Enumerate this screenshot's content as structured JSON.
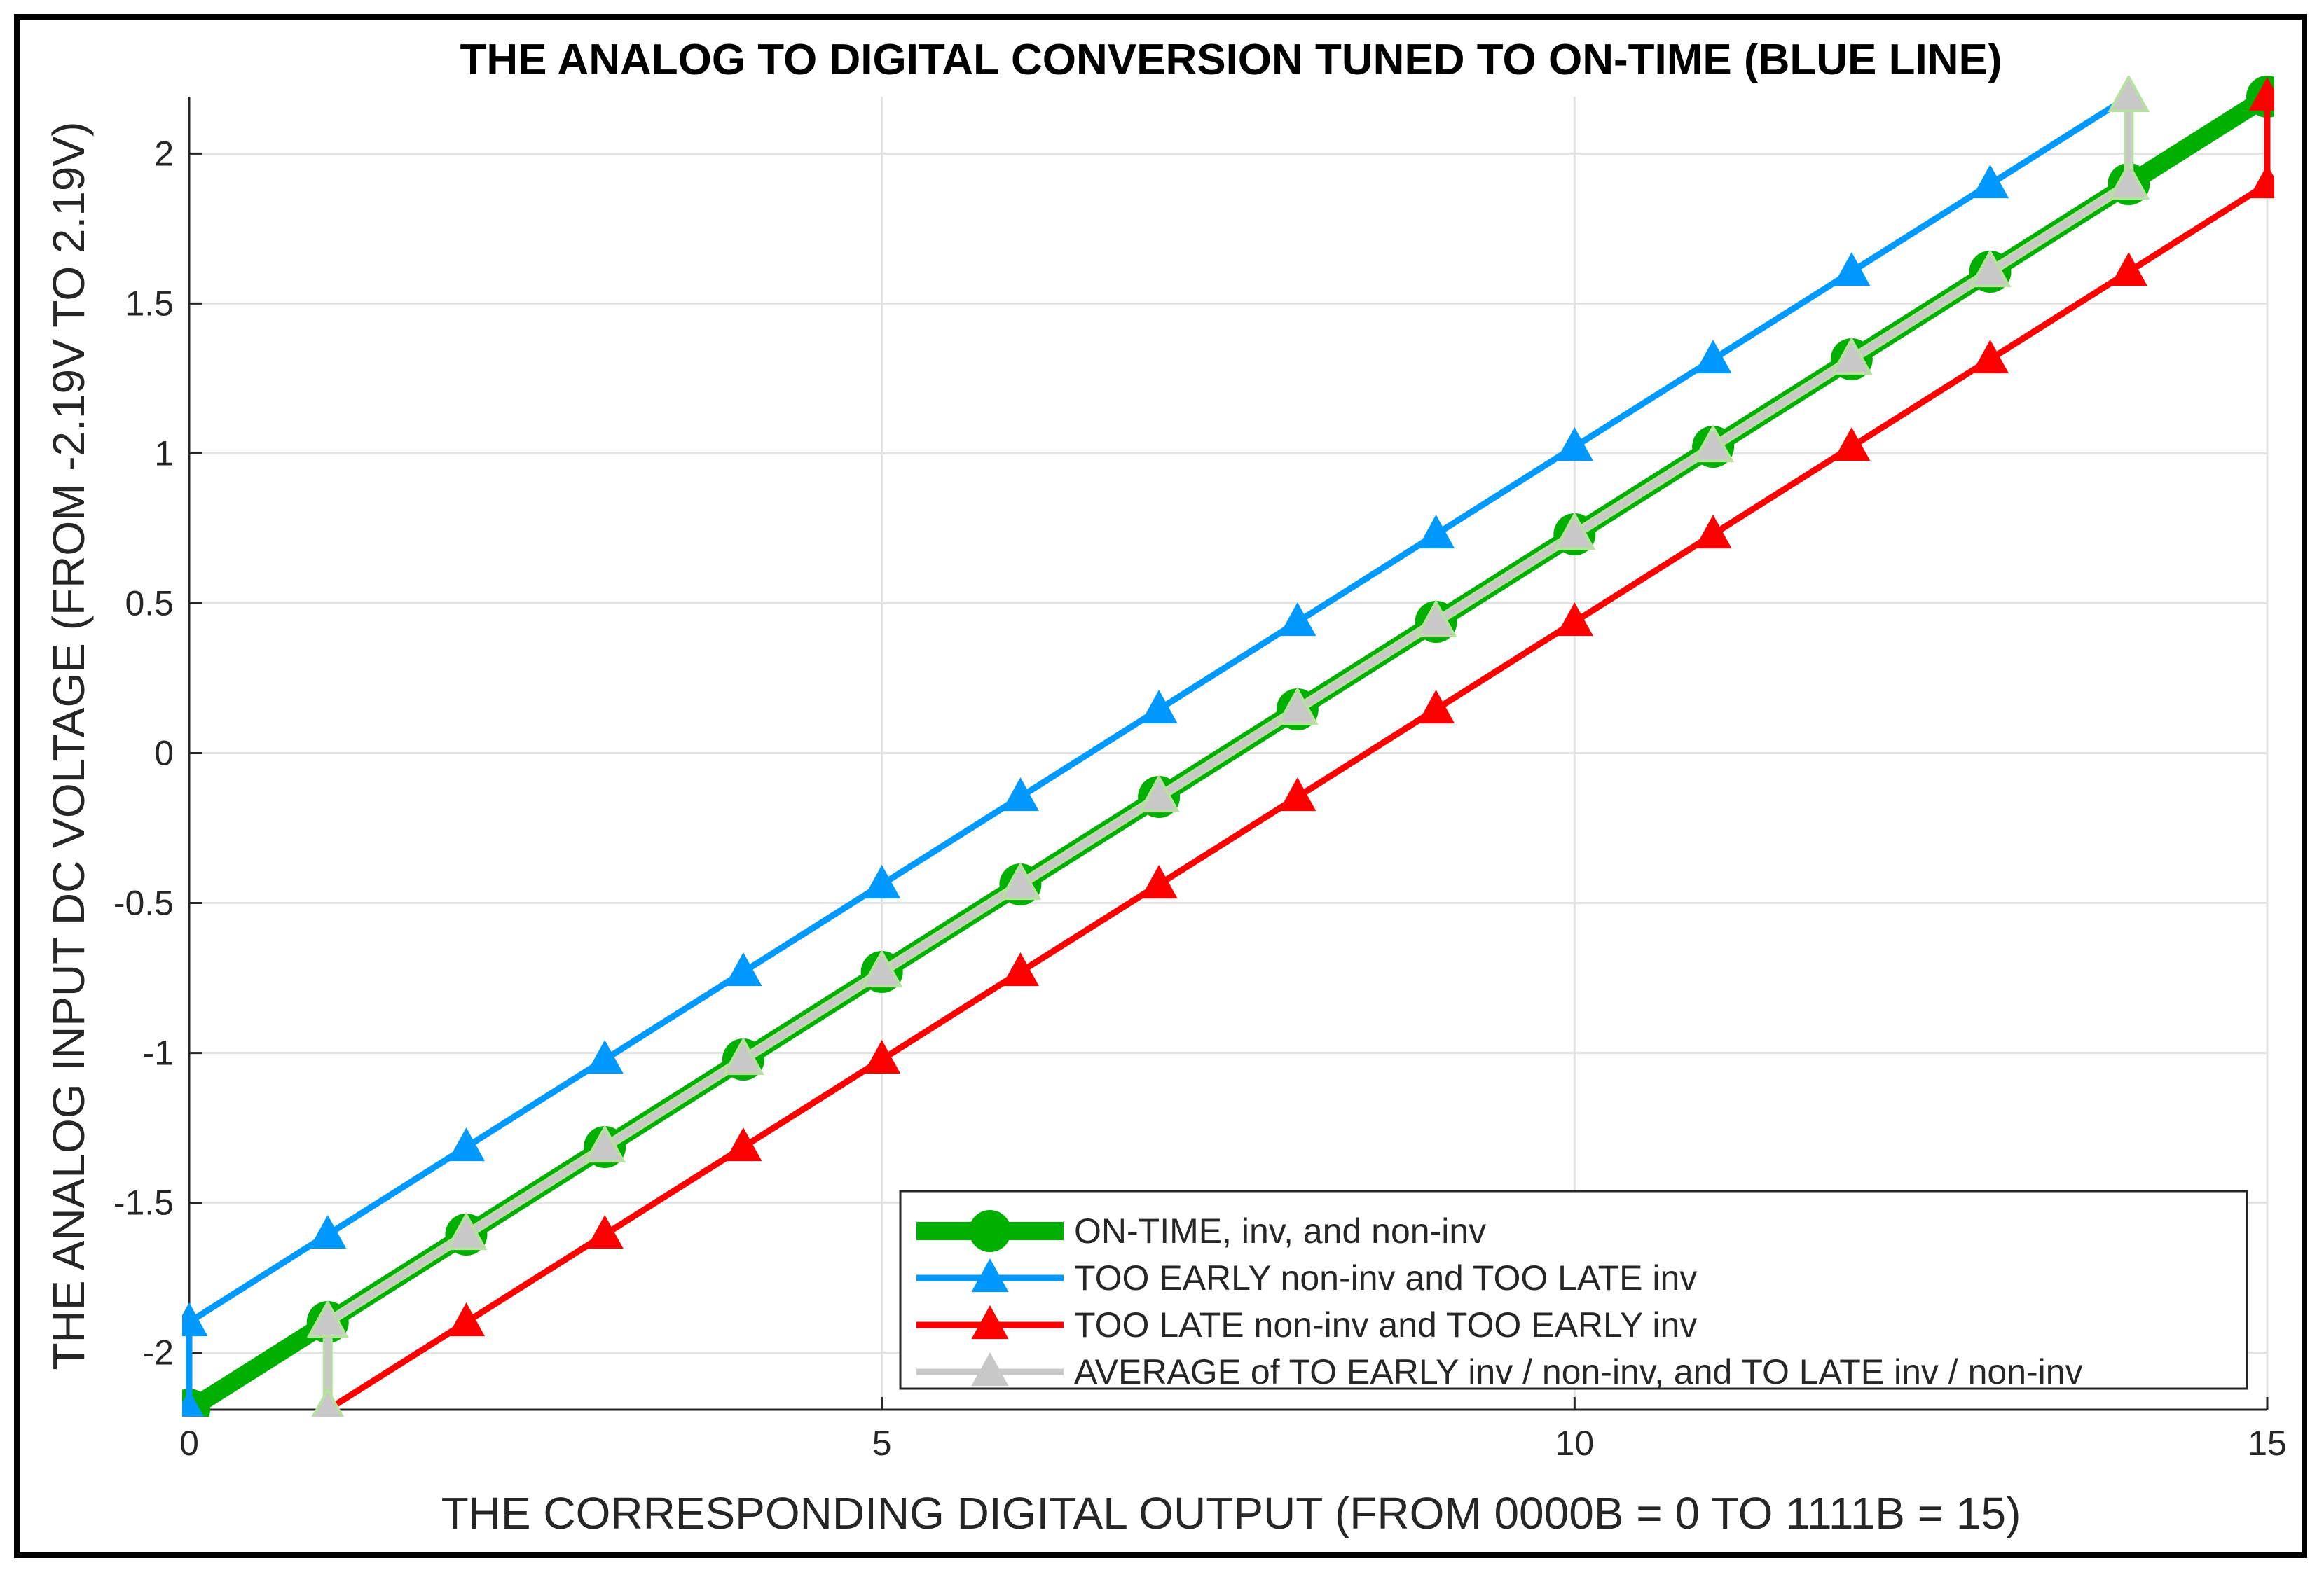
{
  "chart_data": {
    "type": "line",
    "title": "THE ANALOG TO DIGITAL CONVERSION TUNED TO ON-TIME (BLUE LINE)",
    "xlabel": "THE CORRESPONDING DIGITAL OUTPUT (FROM 0000B = 0 TO 1111B = 15)",
    "ylabel": "THE ANALOG INPUT DC VOLTAGE (FROM -2.19V TO 2.19V)",
    "xlim": [
      0,
      15
    ],
    "ylim": [
      -2.19,
      2.19
    ],
    "xticks": [
      0,
      5,
      10,
      15
    ],
    "xtick_labels": [
      "0",
      "5",
      "10",
      "15"
    ],
    "yticks": [
      -2,
      -1.5,
      -1,
      -0.5,
      0,
      0.5,
      1,
      1.5,
      2
    ],
    "ytick_labels": [
      "-2",
      "-1.5",
      "-1",
      "-0.5",
      "0",
      "0.5",
      "1",
      "1.5",
      "2"
    ],
    "grid": true,
    "legend_position": "bottom-right",
    "series": [
      {
        "name": "ON-TIME, inv, and non-inv",
        "color": "#00b000",
        "marker": "circle",
        "style": "thick",
        "x": [
          0,
          1,
          2,
          3,
          4,
          5,
          6,
          7,
          8,
          9,
          10,
          11,
          12,
          13,
          14,
          15
        ],
        "y": [
          -2.19,
          -1.898,
          -1.606,
          -1.314,
          -1.022,
          -0.73,
          -0.438,
          -0.146,
          0.146,
          0.438,
          0.73,
          1.022,
          1.314,
          1.606,
          1.898,
          2.19
        ]
      },
      {
        "name": "TOO EARLY non-inv and TOO LATE inv",
        "color": "#0099ff",
        "marker": "triangle",
        "style": "normal",
        "x": [
          0,
          0,
          1,
          2,
          3,
          4,
          5,
          6,
          7,
          8,
          9,
          10,
          11,
          12,
          13,
          14
        ],
        "y": [
          -2.19,
          -1.898,
          -1.606,
          -1.314,
          -1.022,
          -0.73,
          -0.438,
          -0.146,
          0.146,
          0.438,
          0.73,
          1.022,
          1.314,
          1.606,
          1.898,
          2.19
        ]
      },
      {
        "name": "TOO LATE non-inv and TOO EARLY inv",
        "color": "#ff0000",
        "marker": "triangle",
        "style": "normal",
        "x": [
          1,
          2,
          3,
          4,
          5,
          6,
          7,
          8,
          9,
          10,
          11,
          12,
          13,
          14,
          15,
          15
        ],
        "y": [
          -2.19,
          -1.898,
          -1.606,
          -1.314,
          -1.022,
          -0.73,
          -0.438,
          -0.146,
          0.146,
          0.438,
          0.73,
          1.022,
          1.314,
          1.606,
          1.898,
          2.19
        ]
      },
      {
        "name": "AVERAGE of TO EARLY inv / non-inv, and TO LATE inv / non-inv",
        "color": "#c8c8c8",
        "marker": "triangle",
        "style": "average",
        "x": [
          1,
          1,
          2,
          3,
          4,
          5,
          6,
          7,
          8,
          9,
          10,
          11,
          12,
          13,
          14,
          14
        ],
        "y": [
          -2.19,
          -1.898,
          -1.606,
          -1.314,
          -1.022,
          -0.73,
          -0.438,
          -0.146,
          0.146,
          0.438,
          0.73,
          1.022,
          1.314,
          1.606,
          1.898,
          2.19
        ]
      }
    ]
  }
}
